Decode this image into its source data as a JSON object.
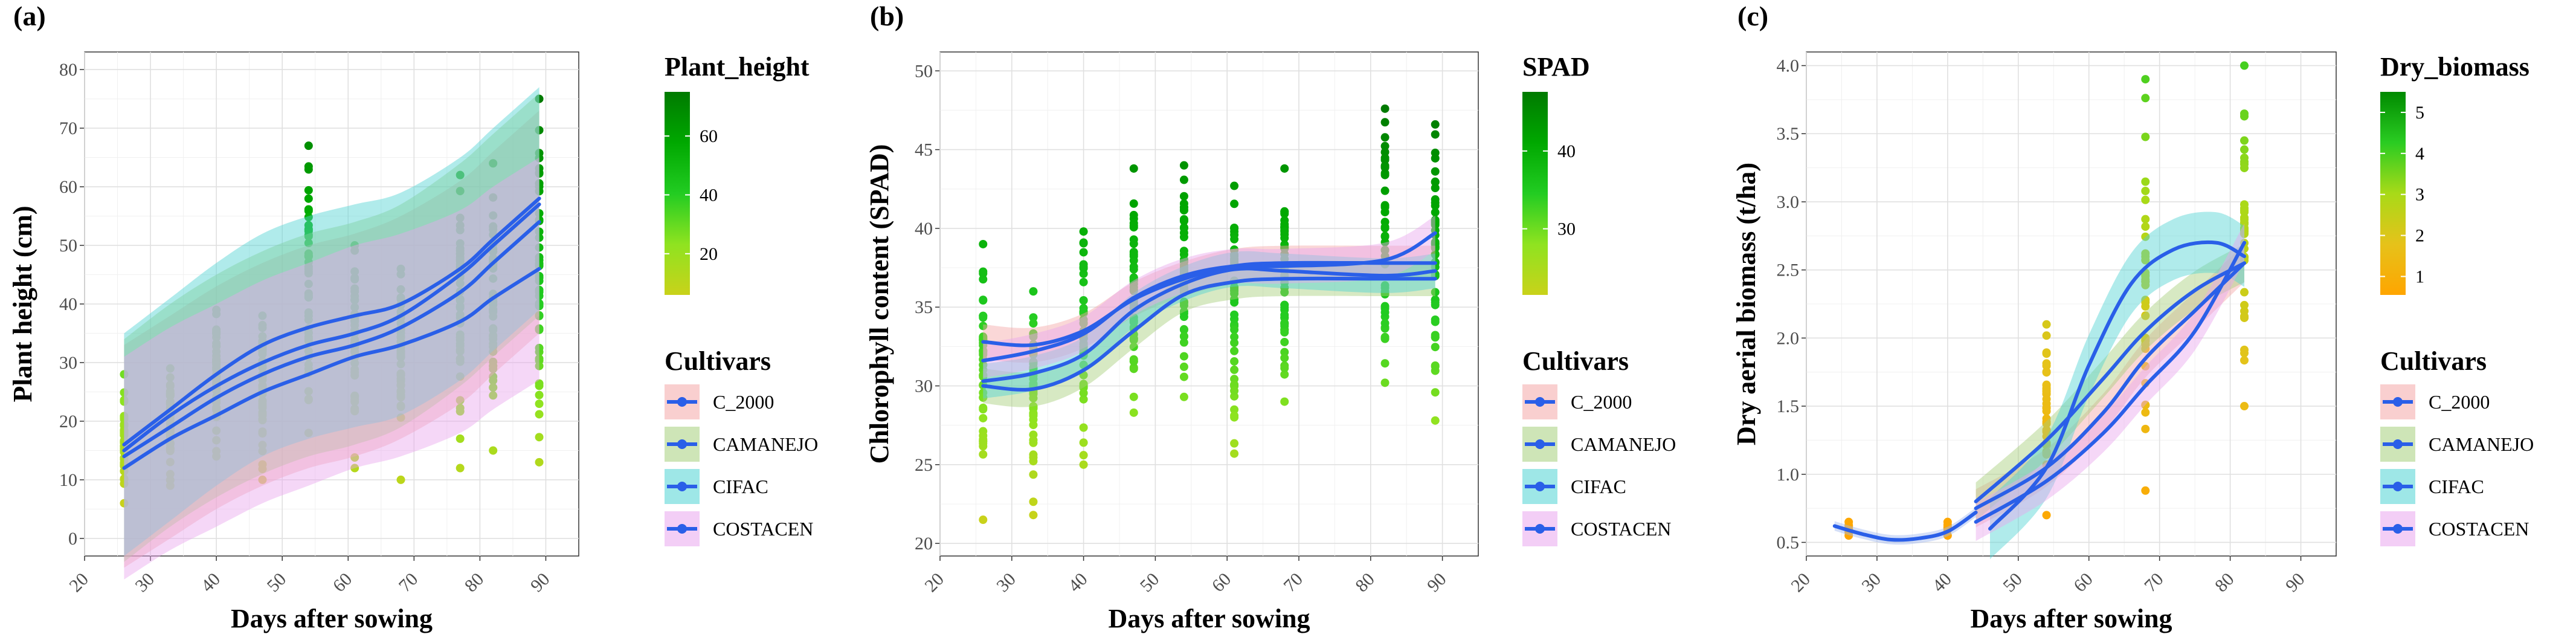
{
  "colors": {
    "cultivars": [
      "#F4A7A7",
      "#A6CF7B",
      "#4FD3D3",
      "#E9A6EE"
    ],
    "smooth_line": "#2A5FE8",
    "colorbar_green": [
      "#C9D21A",
      "#8FE320",
      "#22CC22",
      "#00A800",
      "#007A00"
    ],
    "colorbar_orange": [
      "#FFA500",
      "#E6C21A",
      "#A8DA18",
      "#2ACC22",
      "#008A00"
    ]
  },
  "chart_data": [
    {
      "type": "scatter",
      "panel_label": "(a)",
      "xlabel": "Days after sowing",
      "ylabel": "Plant height (cm)",
      "xlim": [
        20,
        95
      ],
      "ylim": [
        -3,
        83
      ],
      "xticks": [
        "20",
        "30",
        "40",
        "50",
        "60",
        "70",
        "80",
        "90"
      ],
      "yticks": [
        "0",
        "10",
        "20",
        "30",
        "40",
        "50",
        "60",
        "70",
        "80"
      ],
      "sampling_days": [
        26,
        33,
        40,
        47,
        54,
        61,
        68,
        77,
        82,
        89
      ],
      "point_ranges": [
        [
          6,
          28
        ],
        [
          9,
          29
        ],
        [
          14,
          39
        ],
        [
          10,
          38
        ],
        [
          18,
          67
        ],
        [
          12,
          50
        ],
        [
          10,
          46
        ],
        [
          12,
          62
        ],
        [
          15,
          64
        ],
        [
          13,
          75
        ]
      ],
      "color_scale": {
        "title": "Plant_height",
        "ticks": [
          "20",
          "40",
          "60"
        ],
        "tick_values": [
          20,
          40,
          60
        ],
        "range": [
          6,
          75
        ]
      },
      "legend": {
        "title": "Cultivars",
        "items": [
          "C_2000",
          "CAMANEJO",
          "CIFAC",
          "COSTACEN"
        ]
      },
      "series": [
        {
          "name": "C_2000",
          "x": [
            26,
            33,
            40,
            47,
            54,
            61,
            68,
            77,
            82,
            89
          ],
          "y": [
            14,
            19,
            24,
            28,
            31,
            33,
            36,
            42,
            47,
            54
          ]
        },
        {
          "name": "CAMANEJO",
          "x": [
            26,
            33,
            40,
            47,
            54,
            61,
            68,
            77,
            82,
            89
          ],
          "y": [
            15,
            21,
            26,
            30,
            33,
            35,
            38,
            45,
            50,
            57
          ]
        },
        {
          "name": "CIFAC",
          "x": [
            26,
            33,
            40,
            47,
            54,
            61,
            68,
            77,
            82,
            89
          ],
          "y": [
            16,
            22,
            28,
            33,
            36,
            38,
            40,
            46,
            51,
            58
          ]
        },
        {
          "name": "COSTACEN",
          "x": [
            26,
            33,
            40,
            47,
            54,
            61,
            68,
            77,
            82,
            89
          ],
          "y": [
            12,
            17,
            21,
            25,
            28,
            31,
            33,
            37,
            41,
            46
          ]
        }
      ]
    },
    {
      "type": "scatter",
      "panel_label": "(b)",
      "xlabel": "Days after sowing",
      "ylabel": "Chlorophyll content (SPAD)",
      "xlim": [
        20,
        95
      ],
      "ylim": [
        19.2,
        51.2
      ],
      "xticks": [
        "20",
        "30",
        "40",
        "50",
        "60",
        "70",
        "80",
        "90"
      ],
      "yticks": [
        "20",
        "25",
        "30",
        "35",
        "40",
        "45",
        "50"
      ],
      "sampling_days": [
        26,
        33,
        40,
        47,
        54,
        61,
        68,
        82,
        89
      ],
      "point_ranges": [
        [
          21.5,
          39
        ],
        [
          21.8,
          36
        ],
        [
          25,
          39.8
        ],
        [
          28.3,
          43.8
        ],
        [
          29.3,
          44
        ],
        [
          25.7,
          42.7
        ],
        [
          29,
          43.8
        ],
        [
          30.2,
          47.6
        ],
        [
          27.8,
          46.6
        ]
      ],
      "color_scale": {
        "title": "SPAD",
        "ticks": [
          "30",
          "40"
        ],
        "tick_values": [
          30,
          40
        ],
        "range": [
          21.5,
          47.6
        ]
      },
      "legend": {
        "title": "Cultivars",
        "items": [
          "C_2000",
          "CAMANEJO",
          "CIFAC",
          "COSTACEN"
        ]
      },
      "series": [
        {
          "name": "C_2000",
          "x": [
            26,
            33,
            40,
            47,
            54,
            61,
            68,
            82,
            89
          ],
          "y": [
            32.8,
            32.6,
            33.5,
            35.5,
            36.8,
            37.6,
            37.8,
            37.8,
            37.8
          ]
        },
        {
          "name": "CAMANEJO",
          "x": [
            26,
            33,
            40,
            47,
            54,
            61,
            68,
            82,
            89
          ],
          "y": [
            30.0,
            29.8,
            31.0,
            33.5,
            35.8,
            36.6,
            36.8,
            36.8,
            36.8
          ]
        },
        {
          "name": "CIFAC",
          "x": [
            26,
            33,
            40,
            47,
            54,
            61,
            68,
            82,
            89
          ],
          "y": [
            30.3,
            30.8,
            32.0,
            34.8,
            36.5,
            37.4,
            37.3,
            37.0,
            37.3
          ]
        },
        {
          "name": "COSTACEN",
          "x": [
            26,
            33,
            40,
            47,
            54,
            61,
            68,
            82,
            89
          ],
          "y": [
            31.6,
            32.2,
            33.3,
            35.6,
            37.0,
            37.6,
            37.6,
            38.0,
            39.7
          ]
        }
      ]
    },
    {
      "type": "scatter",
      "panel_label": "(c)",
      "xlabel": "Days after sowing",
      "ylabel": "Dry aerial biomass (t/ha)",
      "xlim": [
        20,
        95
      ],
      "ylim": [
        0.4,
        4.1
      ],
      "xticks": [
        "20",
        "30",
        "40",
        "50",
        "60",
        "70",
        "80",
        "90"
      ],
      "yticks": [
        "0.5",
        "1.0",
        "1.5",
        "2.0",
        "2.5",
        "3.0",
        "3.5",
        "4.0"
      ],
      "sampling_days": [
        26,
        40,
        54,
        68,
        82
      ],
      "point_ranges": [
        [
          0.55,
          0.65
        ],
        [
          0.55,
          0.65
        ],
        [
          0.7,
          2.1
        ],
        [
          0.88,
          3.9
        ],
        [
          1.5,
          4.0
        ]
      ],
      "color_scale": {
        "title": "Dry_biomass",
        "ticks": [
          "1",
          "2",
          "3",
          "4",
          "5"
        ],
        "tick_values": [
          1,
          2,
          3,
          4,
          5
        ],
        "range": [
          0.55,
          5.5
        ]
      },
      "legend": {
        "title": "Cultivars",
        "items": [
          "C_2000",
          "CAMANEJO",
          "CIFAC",
          "COSTACEN"
        ]
      },
      "series": [
        {
          "name": "C_2000",
          "x": [
            44,
            54,
            62,
            68,
            75,
            82
          ],
          "y": [
            0.75,
            1.05,
            1.45,
            1.85,
            2.2,
            2.55
          ]
        },
        {
          "name": "CAMANEJO",
          "x": [
            44,
            54,
            62,
            68,
            75,
            82
          ],
          "y": [
            0.8,
            1.25,
            1.7,
            2.05,
            2.35,
            2.55
          ]
        },
        {
          "name": "CIFAC",
          "x": [
            46,
            54,
            60,
            66,
            72,
            78,
            82
          ],
          "y": [
            0.6,
            1.05,
            1.8,
            2.4,
            2.65,
            2.7,
            2.6
          ]
        },
        {
          "name": "COSTACEN",
          "x": [
            44,
            54,
            62,
            68,
            75,
            82
          ],
          "y": [
            0.65,
            0.95,
            1.3,
            1.65,
            2.05,
            2.7
          ]
        },
        {
          "name": "early_fit",
          "x": [
            24,
            28,
            32,
            36,
            40,
            44
          ],
          "y": [
            0.62,
            0.56,
            0.52,
            0.53,
            0.58,
            0.72
          ]
        }
      ]
    }
  ]
}
